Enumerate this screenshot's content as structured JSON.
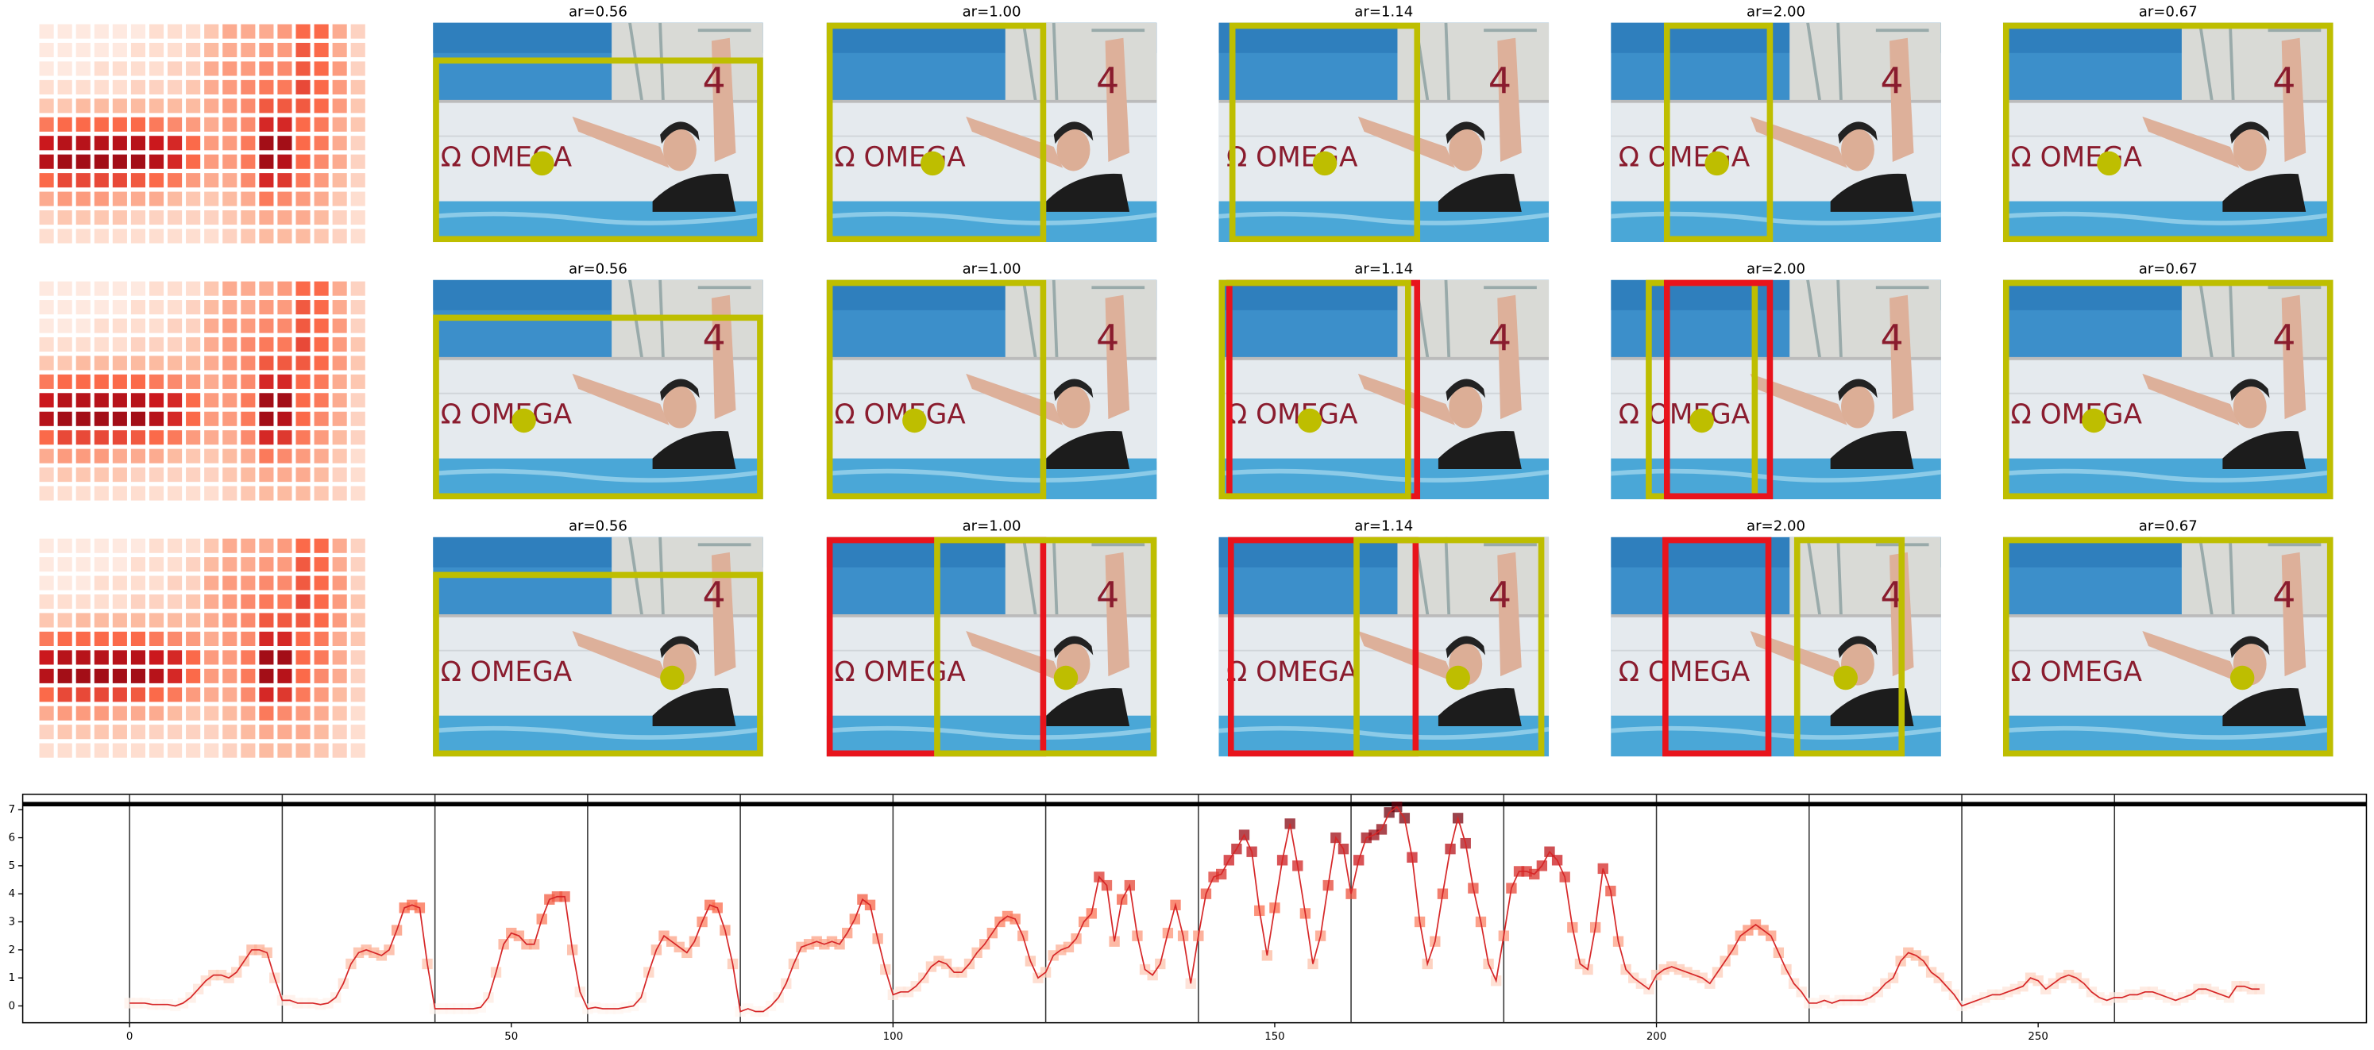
{
  "panels": {
    "titles": [
      "ar=0.56",
      "ar=1.00",
      "ar=1.14",
      "ar=2.00",
      "ar=0.67"
    ],
    "photo_text": {
      "brand": "Ω OMEGA",
      "number": "4"
    }
  },
  "heatmap": {
    "cmap": "Reds",
    "values": [
      [
        0.05,
        0.05,
        0.05,
        0.05,
        0.05,
        0.05,
        0.1,
        0.1,
        0.1,
        0.2,
        0.3,
        0.3,
        0.3,
        0.35,
        0.5,
        0.5,
        0.3,
        0.15
      ],
      [
        0.05,
        0.05,
        0.05,
        0.05,
        0.05,
        0.1,
        0.1,
        0.1,
        0.15,
        0.25,
        0.3,
        0.3,
        0.35,
        0.35,
        0.55,
        0.5,
        0.3,
        0.15
      ],
      [
        0.05,
        0.05,
        0.05,
        0.1,
        0.1,
        0.1,
        0.1,
        0.15,
        0.15,
        0.3,
        0.35,
        0.35,
        0.4,
        0.4,
        0.55,
        0.5,
        0.35,
        0.15
      ],
      [
        0.1,
        0.1,
        0.1,
        0.1,
        0.1,
        0.15,
        0.15,
        0.15,
        0.2,
        0.3,
        0.35,
        0.4,
        0.45,
        0.45,
        0.6,
        0.5,
        0.35,
        0.2
      ],
      [
        0.2,
        0.2,
        0.25,
        0.25,
        0.25,
        0.25,
        0.25,
        0.25,
        0.25,
        0.3,
        0.35,
        0.4,
        0.55,
        0.55,
        0.55,
        0.5,
        0.35,
        0.2
      ],
      [
        0.45,
        0.5,
        0.5,
        0.5,
        0.5,
        0.5,
        0.45,
        0.4,
        0.35,
        0.3,
        0.35,
        0.4,
        0.7,
        0.7,
        0.5,
        0.45,
        0.3,
        0.2
      ],
      [
        0.75,
        0.8,
        0.8,
        0.8,
        0.8,
        0.8,
        0.75,
        0.7,
        0.5,
        0.35,
        0.35,
        0.45,
        0.85,
        0.85,
        0.5,
        0.45,
        0.3,
        0.15
      ],
      [
        0.8,
        0.85,
        0.85,
        0.85,
        0.85,
        0.85,
        0.8,
        0.7,
        0.5,
        0.35,
        0.35,
        0.45,
        0.85,
        0.8,
        0.5,
        0.4,
        0.3,
        0.15
      ],
      [
        0.5,
        0.6,
        0.6,
        0.6,
        0.6,
        0.55,
        0.5,
        0.45,
        0.35,
        0.3,
        0.3,
        0.4,
        0.7,
        0.65,
        0.45,
        0.35,
        0.25,
        0.15
      ],
      [
        0.3,
        0.35,
        0.35,
        0.35,
        0.3,
        0.3,
        0.3,
        0.25,
        0.2,
        0.2,
        0.25,
        0.3,
        0.45,
        0.4,
        0.35,
        0.3,
        0.2,
        0.1
      ],
      [
        0.15,
        0.2,
        0.2,
        0.2,
        0.2,
        0.15,
        0.15,
        0.15,
        0.15,
        0.15,
        0.2,
        0.25,
        0.3,
        0.3,
        0.3,
        0.25,
        0.15,
        0.1
      ],
      [
        0.1,
        0.1,
        0.1,
        0.1,
        0.1,
        0.1,
        0.1,
        0.1,
        0.1,
        0.1,
        0.15,
        0.2,
        0.25,
        0.25,
        0.25,
        0.2,
        0.15,
        0.1
      ]
    ]
  },
  "chart_data": {
    "type": "line",
    "line_color": "#d62728",
    "marker_cmap": "Reds",
    "color_range": [
      0,
      7
    ],
    "xlim": [
      -14,
      293
    ],
    "ylim": [
      -0.6,
      7.55
    ],
    "xticks": [
      0,
      50,
      100,
      150,
      200,
      250
    ],
    "yticks": [
      0,
      1,
      2,
      3,
      4,
      5,
      6,
      7
    ],
    "vlines": [
      0,
      20,
      40,
      60,
      80,
      100,
      120,
      140,
      160,
      180,
      200,
      220,
      240,
      260
    ],
    "hline": 7.2,
    "grid": false,
    "x": [
      0,
      1,
      2,
      3,
      4,
      5,
      6,
      7,
      8,
      9,
      10,
      11,
      12,
      13,
      14,
      15,
      16,
      17,
      18,
      19,
      20,
      21,
      22,
      23,
      24,
      25,
      26,
      27,
      28,
      29,
      30,
      31,
      32,
      33,
      34,
      35,
      36,
      37,
      38,
      39,
      40,
      41,
      42,
      43,
      44,
      45,
      46,
      47,
      48,
      49,
      50,
      51,
      52,
      53,
      54,
      55,
      56,
      57,
      58,
      59,
      60,
      61,
      62,
      63,
      64,
      65,
      66,
      67,
      68,
      69,
      70,
      71,
      72,
      73,
      74,
      75,
      76,
      77,
      78,
      79,
      80,
      81,
      82,
      83,
      84,
      85,
      86,
      87,
      88,
      89,
      90,
      91,
      92,
      93,
      94,
      95,
      96,
      97,
      98,
      99,
      100,
      101,
      102,
      103,
      104,
      105,
      106,
      107,
      108,
      109,
      110,
      111,
      112,
      113,
      114,
      115,
      116,
      117,
      118,
      119,
      120,
      121,
      122,
      123,
      124,
      125,
      126,
      127,
      128,
      129,
      130,
      131,
      132,
      133,
      134,
      135,
      136,
      137,
      138,
      139,
      140,
      141,
      142,
      143,
      144,
      145,
      146,
      147,
      148,
      149,
      150,
      151,
      152,
      153,
      154,
      155,
      156,
      157,
      158,
      159,
      160,
      161,
      162,
      163,
      164,
      165,
      166,
      167,
      168,
      169,
      170,
      171,
      172,
      173,
      174,
      175,
      176,
      177,
      178,
      179,
      180,
      181,
      182,
      183,
      184,
      185,
      186,
      187,
      188,
      189,
      190,
      191,
      192,
      193,
      194,
      195,
      196,
      197,
      198,
      199,
      200,
      201,
      202,
      203,
      204,
      205,
      206,
      207,
      208,
      209,
      210,
      211,
      212,
      213,
      214,
      215,
      216,
      217,
      218,
      219,
      220,
      221,
      222,
      223,
      224,
      225,
      226,
      227,
      228,
      229,
      230,
      231,
      232,
      233,
      234,
      235,
      236,
      237,
      238,
      239,
      240,
      241,
      242,
      243,
      244,
      245,
      246,
      247,
      248,
      249,
      250,
      251,
      252,
      253,
      254,
      255,
      256,
      257,
      258,
      259,
      260,
      261,
      262,
      263,
      264,
      265,
      266,
      267,
      268,
      269,
      270,
      271,
      272,
      273,
      274,
      275,
      276,
      277,
      278,
      279
    ],
    "values": [
      0.1,
      0.1,
      0.1,
      0.05,
      0.05,
      0.05,
      0.0,
      0.1,
      0.3,
      0.6,
      0.9,
      1.1,
      1.1,
      1.0,
      1.2,
      1.6,
      2.0,
      2.0,
      1.9,
      1.0,
      0.2,
      0.2,
      0.1,
      0.1,
      0.1,
      0.05,
      0.1,
      0.3,
      0.8,
      1.5,
      1.9,
      2.0,
      1.9,
      1.8,
      2.0,
      2.7,
      3.5,
      3.6,
      3.5,
      1.5,
      -0.1,
      -0.1,
      -0.1,
      -0.1,
      -0.1,
      -0.1,
      -0.05,
      0.3,
      1.2,
      2.2,
      2.6,
      2.5,
      2.2,
      2.2,
      3.1,
      3.8,
      3.9,
      3.9,
      2.0,
      0.5,
      -0.1,
      -0.05,
      -0.1,
      -0.1,
      -0.1,
      -0.05,
      0.0,
      0.3,
      1.2,
      2.0,
      2.5,
      2.3,
      2.1,
      1.9,
      2.3,
      3.0,
      3.6,
      3.5,
      2.7,
      1.5,
      -0.2,
      -0.1,
      -0.2,
      -0.2,
      0.0,
      0.3,
      0.8,
      1.5,
      2.1,
      2.2,
      2.3,
      2.2,
      2.3,
      2.2,
      2.6,
      3.1,
      3.8,
      3.6,
      2.4,
      1.3,
      0.4,
      0.5,
      0.5,
      0.7,
      1.0,
      1.4,
      1.6,
      1.5,
      1.2,
      1.2,
      1.5,
      1.9,
      2.2,
      2.6,
      3.0,
      3.2,
      3.1,
      2.5,
      1.6,
      1.0,
      1.2,
      1.8,
      2.0,
      2.1,
      2.4,
      3.0,
      3.3,
      4.6,
      4.3,
      2.3,
      3.8,
      4.3,
      2.5,
      1.3,
      1.1,
      1.5,
      2.6,
      3.6,
      2.5,
      0.8,
      2.5,
      4.0,
      4.6,
      4.7,
      5.2,
      5.6,
      6.1,
      5.5,
      3.4,
      1.8,
      3.5,
      5.2,
      6.5,
      5.0,
      3.3,
      1.5,
      2.5,
      4.3,
      6.0,
      5.6,
      4.0,
      5.2,
      6.0,
      6.1,
      6.3,
      6.9,
      7.1,
      6.7,
      5.3,
      3.0,
      1.5,
      2.3,
      4.0,
      5.6,
      6.7,
      5.8,
      4.2,
      3.0,
      1.5,
      0.9,
      2.5,
      4.2,
      4.8,
      4.8,
      4.7,
      5.0,
      5.5,
      5.2,
      4.6,
      2.8,
      1.5,
      1.3,
      2.8,
      4.9,
      4.1,
      2.3,
      1.3,
      1.0,
      0.8,
      0.6,
      1.1,
      1.3,
      1.4,
      1.3,
      1.2,
      1.1,
      1.0,
      0.8,
      1.2,
      1.6,
      2.0,
      2.5,
      2.7,
      2.9,
      2.7,
      2.5,
      1.9,
      1.3,
      0.8,
      0.5,
      0.1,
      0.1,
      0.2,
      0.1,
      0.2,
      0.2,
      0.2,
      0.2,
      0.3,
      0.5,
      0.8,
      1.0,
      1.6,
      1.9,
      1.8,
      1.6,
      1.2,
      1.0,
      0.7,
      0.4,
      0.0,
      0.1,
      0.2,
      0.3,
      0.4,
      0.4,
      0.5,
      0.6,
      0.7,
      1.0,
      0.9,
      0.6,
      0.8,
      1.0,
      1.1,
      1.0,
      0.8,
      0.5,
      0.3,
      0.2,
      0.3,
      0.3,
      0.4,
      0.4,
      0.5,
      0.5,
      0.4,
      0.3,
      0.2,
      0.3,
      0.4,
      0.6,
      0.6,
      0.5,
      0.4,
      0.3,
      0.7,
      0.7,
      0.6,
      0.6
    ]
  }
}
